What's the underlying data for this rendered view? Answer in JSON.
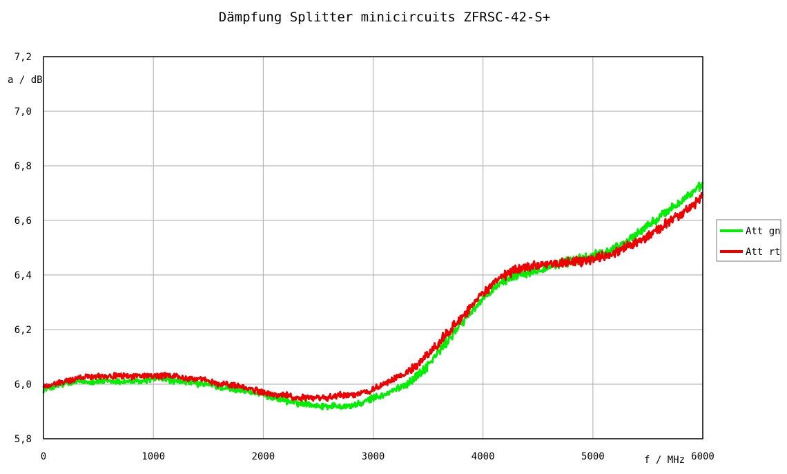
{
  "chart_data": {
    "type": "line",
    "title": "Dämpfung Splitter minicircuits ZFRSC-42-S+",
    "xlabel": "f / MHz",
    "ylabel": "a / dB",
    "xlim": [
      0,
      6000
    ],
    "ylim": [
      5.8,
      7.2
    ],
    "x_ticks": [
      0,
      1000,
      2000,
      3000,
      4000,
      5000,
      6000
    ],
    "y_ticks": [
      5.8,
      6.0,
      6.2,
      6.4,
      6.6,
      6.8,
      7.0,
      7.2
    ],
    "y_tick_labels": [
      "5,8",
      "6,0",
      "6,2",
      "6,4",
      "6,6",
      "6,8",
      "7,0",
      "7,2"
    ],
    "x_tick_labels": [
      "0",
      "1000",
      "2000",
      "3000",
      "4000",
      "5000",
      "6000"
    ],
    "grid": true,
    "legend_position": "right",
    "x": [
      0,
      100,
      200,
      300,
      400,
      500,
      600,
      700,
      800,
      900,
      1000,
      1100,
      1200,
      1300,
      1400,
      1500,
      1600,
      1700,
      1800,
      1900,
      2000,
      2100,
      2200,
      2300,
      2400,
      2500,
      2600,
      2700,
      2800,
      2900,
      3000,
      3100,
      3200,
      3300,
      3400,
      3500,
      3600,
      3700,
      3800,
      3900,
      4000,
      4100,
      4200,
      4300,
      4400,
      4500,
      4600,
      4700,
      4800,
      4900,
      5000,
      5100,
      5200,
      5300,
      5400,
      5500,
      5600,
      5700,
      5800,
      5900,
      6000
    ],
    "series": [
      {
        "name": "Att gn",
        "color": "#00ee00",
        "values": [
          5.98,
          5.99,
          6.0,
          6.01,
          6.01,
          6.01,
          6.01,
          6.01,
          6.01,
          6.01,
          6.02,
          6.02,
          6.01,
          6.01,
          6.0,
          6.0,
          5.99,
          5.98,
          5.98,
          5.97,
          5.96,
          5.95,
          5.94,
          5.93,
          5.93,
          5.92,
          5.92,
          5.92,
          5.92,
          5.93,
          5.95,
          5.96,
          5.98,
          6.0,
          6.03,
          6.07,
          6.12,
          6.17,
          6.22,
          6.27,
          6.31,
          6.35,
          6.38,
          6.4,
          6.41,
          6.42,
          6.43,
          6.44,
          6.45,
          6.46,
          6.47,
          6.48,
          6.5,
          6.52,
          6.55,
          6.58,
          6.61,
          6.64,
          6.67,
          6.7,
          6.73
        ]
      },
      {
        "name": "Att rt",
        "color": "#ee0000",
        "values": [
          5.99,
          6.0,
          6.01,
          6.02,
          6.03,
          6.03,
          6.03,
          6.03,
          6.03,
          6.03,
          6.03,
          6.03,
          6.03,
          6.02,
          6.02,
          6.01,
          6.0,
          6.0,
          5.99,
          5.98,
          5.97,
          5.96,
          5.96,
          5.95,
          5.95,
          5.95,
          5.95,
          5.96,
          5.96,
          5.97,
          5.98,
          6.0,
          6.02,
          6.04,
          6.07,
          6.11,
          6.15,
          6.2,
          6.24,
          6.29,
          6.33,
          6.37,
          6.4,
          6.42,
          6.43,
          6.44,
          6.44,
          6.44,
          6.45,
          6.45,
          6.46,
          6.47,
          6.48,
          6.5,
          6.52,
          6.54,
          6.57,
          6.6,
          6.62,
          6.65,
          6.69
        ]
      }
    ]
  }
}
